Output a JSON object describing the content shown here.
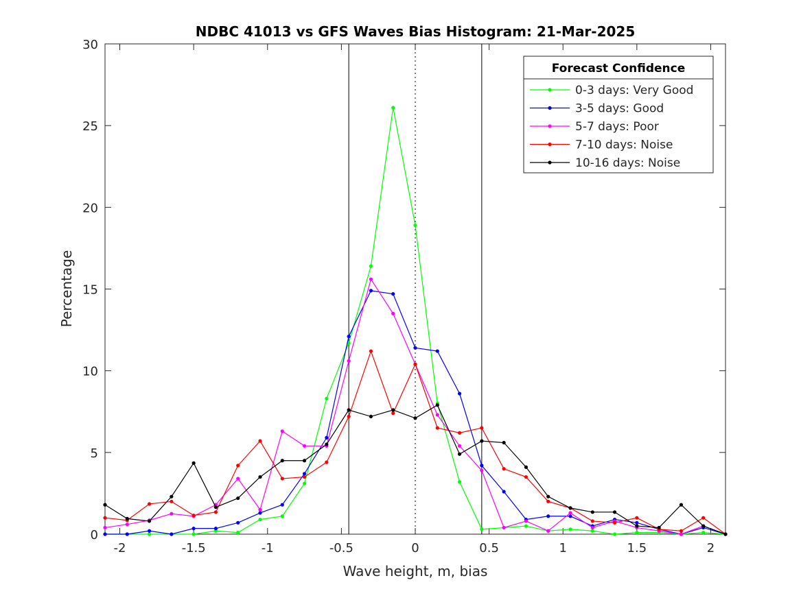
{
  "chart_data": {
    "type": "line",
    "title": "NDBC 41013 vs GFS Waves Bias Histogram: 21-Mar-2025",
    "xlabel": "Wave height, m, bias",
    "ylabel": "Percentage",
    "xlim": [
      -2.1,
      2.1
    ],
    "ylim": [
      0,
      30
    ],
    "xticks": [
      -2,
      -1.5,
      -1,
      -0.5,
      0,
      0.5,
      1,
      1.5,
      2
    ],
    "xtick_labels": [
      "-2",
      "-1.5",
      "-1",
      "-0.5",
      "0",
      "0.5",
      "1",
      "1.5",
      "2"
    ],
    "yticks": [
      0,
      5,
      10,
      15,
      20,
      25,
      30
    ],
    "ytick_labels": [
      "0",
      "5",
      "10",
      "15",
      "20",
      "25",
      "30"
    ],
    "grid": false,
    "reference_lines": [
      {
        "x": -0.45,
        "style": "solid"
      },
      {
        "x": 0,
        "style": "dotted"
      },
      {
        "x": 0.45,
        "style": "solid"
      }
    ],
    "legend": {
      "title": "Forecast Confidence",
      "placement": "top-right"
    },
    "x": [
      -2.1,
      -1.95,
      -1.8,
      -1.65,
      -1.5,
      -1.35,
      -1.2,
      -1.05,
      -0.9,
      -0.75,
      -0.6,
      -0.45,
      -0.3,
      -0.15,
      0,
      0.15,
      0.3,
      0.45,
      0.6,
      0.75,
      0.9,
      1.05,
      1.2,
      1.35,
      1.5,
      1.65,
      1.8,
      1.95,
      2.1
    ],
    "series": [
      {
        "name": "0-3 days: Very Good",
        "color": "#00ff00",
        "values": [
          0,
          0,
          0,
          0,
          0,
          0.2,
          0.1,
          0.9,
          1.1,
          3.1,
          8.3,
          11.7,
          16.4,
          26.1,
          18.9,
          8.0,
          3.2,
          0.3,
          0.4,
          0.5,
          0.2,
          0.3,
          0.2,
          0,
          0.1,
          0.1,
          0,
          0.1,
          0
        ]
      },
      {
        "name": "3-5 days: Good",
        "color": "#0000ff",
        "values": [
          0,
          0,
          0.2,
          0,
          0.35,
          0.35,
          0.7,
          1.3,
          1.8,
          3.7,
          5.9,
          12.1,
          14.9,
          14.7,
          11.4,
          11.2,
          8.6,
          4.2,
          2.6,
          0.9,
          1.1,
          1.1,
          0.5,
          0.9,
          0.7,
          0.3,
          0,
          0.4,
          0
        ]
      },
      {
        "name": "5-7 days: Poor",
        "color": "#ff00ff",
        "values": [
          0.4,
          0.6,
          0.85,
          1.25,
          1.1,
          1.8,
          3.4,
          1.5,
          6.3,
          5.4,
          5.4,
          10.6,
          15.6,
          13.5,
          10.4,
          7.3,
          5.4,
          3.9,
          0.4,
          0.8,
          0.2,
          1.3,
          0.4,
          0.8,
          0.4,
          0.2,
          0,
          0.5,
          0
        ]
      },
      {
        "name": "7-10 days: Noise",
        "color": "#ff0000",
        "values": [
          1.0,
          0.85,
          1.85,
          2.0,
          1.15,
          1.35,
          4.2,
          5.7,
          3.4,
          3.5,
          4.4,
          7.2,
          11.2,
          7.4,
          10.4,
          6.5,
          6.2,
          6.5,
          4.0,
          3.5,
          2.0,
          1.6,
          0.8,
          0.7,
          1.0,
          0.3,
          0.2,
          1.0,
          0
        ]
      },
      {
        "name": "10-16 days: Noise",
        "color": "#000000",
        "values": [
          1.8,
          0.95,
          0.8,
          2.3,
          4.35,
          1.65,
          2.2,
          3.5,
          4.5,
          4.5,
          5.5,
          7.6,
          7.2,
          7.6,
          7.1,
          7.9,
          4.9,
          5.7,
          5.6,
          4.1,
          2.3,
          1.6,
          1.35,
          1.35,
          0.5,
          0.4,
          1.8,
          0.5,
          0
        ]
      }
    ]
  }
}
